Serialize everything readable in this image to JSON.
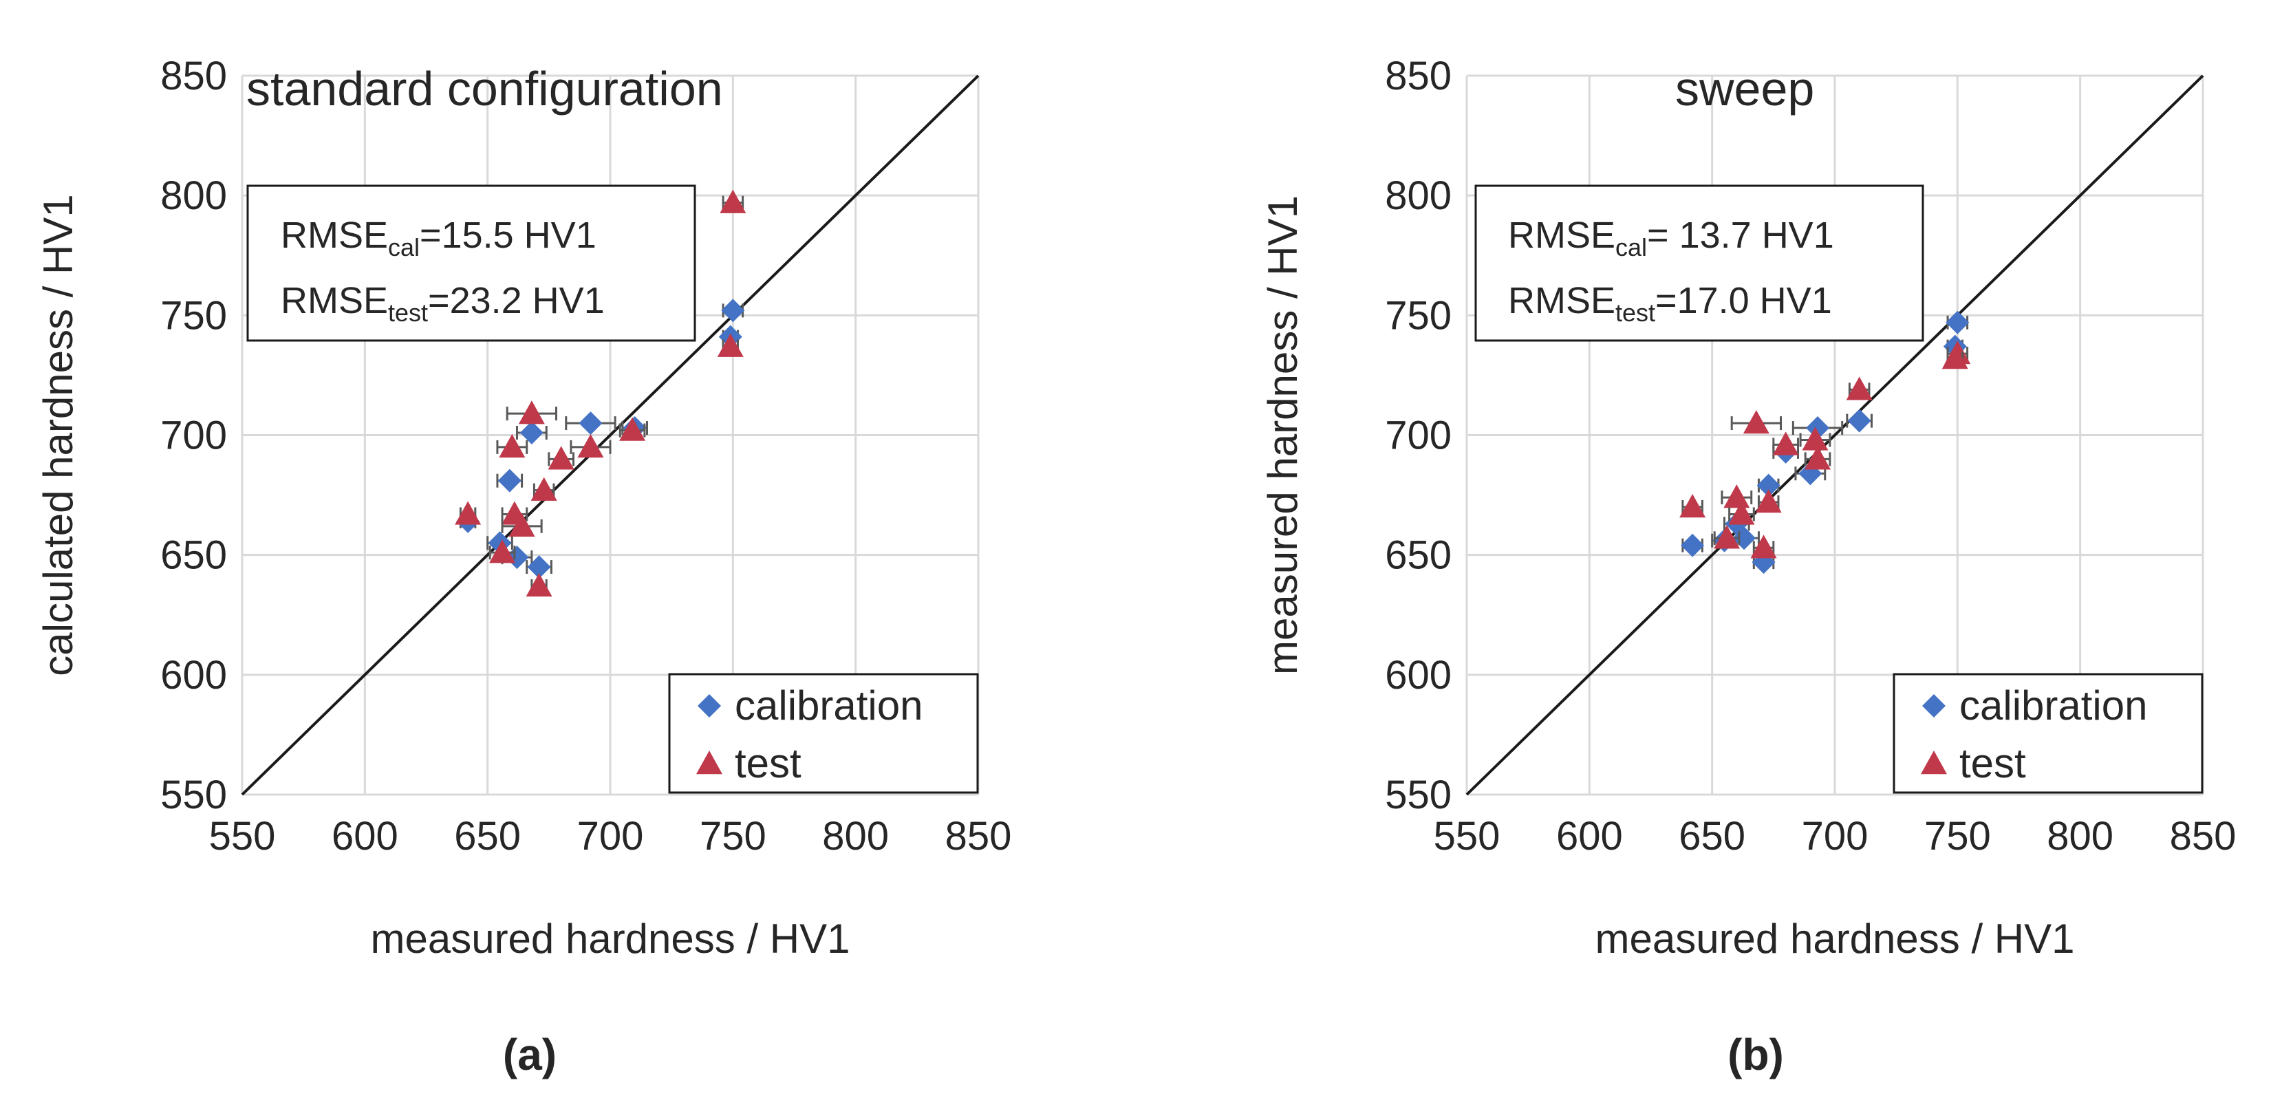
{
  "colors": {
    "calibration": "#4472C4",
    "test": "#C0394B",
    "grid": "#D9D9D9",
    "diagonal": "#1a1a1a",
    "errorbar": "#595959"
  },
  "chart_data": [
    {
      "type": "scatter",
      "panel_label": "(a)",
      "title": "standard configuration",
      "xlabel": "measured hardness / HV1",
      "ylabel": "calculated hardness  / HV1",
      "xlim": [
        550,
        850
      ],
      "ylim": [
        550,
        850
      ],
      "xticks": [
        550,
        600,
        650,
        700,
        750,
        800,
        850
      ],
      "yticks": [
        550,
        600,
        650,
        700,
        750,
        800,
        850
      ],
      "grid": true,
      "reference_line": "y = x",
      "rmse": [
        {
          "base": "RMSE",
          "sub": "cal",
          "value": "=15.5 HV1"
        },
        {
          "base": "RMSE",
          "sub": "test",
          "value": "=23.2 HV1"
        }
      ],
      "legend": {
        "position": "bottom-right",
        "entries": [
          "calibration",
          "test"
        ]
      },
      "series": [
        {
          "name": "calibration",
          "marker": "diamond",
          "points": [
            {
              "x": 642,
              "y": 664,
              "xerr": 3
            },
            {
              "x": 655,
              "y": 655,
              "xerr": 5
            },
            {
              "x": 659,
              "y": 681,
              "xerr": 5
            },
            {
              "x": 662,
              "y": 649,
              "xerr": 6
            },
            {
              "x": 668,
              "y": 701,
              "xerr": 6
            },
            {
              "x": 671,
              "y": 645,
              "xerr": 5
            },
            {
              "x": 692,
              "y": 705,
              "xerr": 10
            },
            {
              "x": 710,
              "y": 703,
              "xerr": 5
            },
            {
              "x": 750,
              "y": 752,
              "xerr": 4
            },
            {
              "x": 749,
              "y": 741,
              "xerr": 3
            }
          ]
        },
        {
          "name": "test",
          "marker": "triangle",
          "points": [
            {
              "x": 642,
              "y": 667,
              "xerr": 3
            },
            {
              "x": 656,
              "y": 651,
              "xerr": 5
            },
            {
              "x": 660,
              "y": 695,
              "xerr": 6
            },
            {
              "x": 661,
              "y": 667,
              "xerr": 5
            },
            {
              "x": 664,
              "y": 662,
              "xerr": 8
            },
            {
              "x": 668,
              "y": 709,
              "xerr": 10
            },
            {
              "x": 671,
              "y": 637,
              "xerr": 3
            },
            {
              "x": 673,
              "y": 677,
              "xerr": 4
            },
            {
              "x": 680,
              "y": 690,
              "xerr": 5
            },
            {
              "x": 692,
              "y": 695,
              "xerr": 8
            },
            {
              "x": 709,
              "y": 702,
              "xerr": 5
            },
            {
              "x": 750,
              "y": 797,
              "xerr": 4
            },
            {
              "x": 749,
              "y": 737,
              "xerr": 3
            }
          ]
        }
      ]
    },
    {
      "type": "scatter",
      "panel_label": "(b)",
      "title": "sweep",
      "xlabel": "measured hardness / HV1",
      "ylabel": "measured hardness / HV1",
      "xlim": [
        550,
        850
      ],
      "ylim": [
        550,
        850
      ],
      "xticks": [
        550,
        600,
        650,
        700,
        750,
        800,
        850
      ],
      "yticks": [
        550,
        600,
        650,
        700,
        750,
        800,
        850
      ],
      "grid": true,
      "reference_line": "y = x",
      "rmse": [
        {
          "base": "RMSE",
          "sub": "cal",
          "value": "= 13.7 HV1"
        },
        {
          "base": "RMSE",
          "sub": "test",
          "value": "=17.0 HV1"
        }
      ],
      "legend": {
        "position": "bottom-right",
        "entries": [
          "calibration",
          "test"
        ]
      },
      "series": [
        {
          "name": "calibration",
          "marker": "diamond",
          "points": [
            {
              "x": 642,
              "y": 654,
              "xerr": 4
            },
            {
              "x": 655,
              "y": 656,
              "xerr": 5
            },
            {
              "x": 660,
              "y": 663,
              "xerr": 5
            },
            {
              "x": 663,
              "y": 657,
              "xerr": 6
            },
            {
              "x": 671,
              "y": 647,
              "xerr": 4
            },
            {
              "x": 673,
              "y": 679,
              "xerr": 4
            },
            {
              "x": 680,
              "y": 693,
              "xerr": 5
            },
            {
              "x": 690,
              "y": 684,
              "xerr": 6
            },
            {
              "x": 693,
              "y": 703,
              "xerr": 10
            },
            {
              "x": 710,
              "y": 706,
              "xerr": 5
            },
            {
              "x": 750,
              "y": 747,
              "xerr": 4
            },
            {
              "x": 749,
              "y": 737,
              "xerr": 3
            }
          ]
        },
        {
          "name": "test",
          "marker": "triangle",
          "points": [
            {
              "x": 642,
              "y": 670,
              "xerr": 4
            },
            {
              "x": 656,
              "y": 657,
              "xerr": 5
            },
            {
              "x": 660,
              "y": 674,
              "xerr": 6
            },
            {
              "x": 662,
              "y": 667,
              "xerr": 5
            },
            {
              "x": 668,
              "y": 705,
              "xerr": 10
            },
            {
              "x": 671,
              "y": 653,
              "xerr": 4
            },
            {
              "x": 673,
              "y": 672,
              "xerr": 4
            },
            {
              "x": 680,
              "y": 696,
              "xerr": 5
            },
            {
              "x": 692,
              "y": 698,
              "xerr": 6
            },
            {
              "x": 693,
              "y": 690,
              "xerr": 5
            },
            {
              "x": 710,
              "y": 719,
              "xerr": 4
            },
            {
              "x": 750,
              "y": 734,
              "xerr": 4
            },
            {
              "x": 749,
              "y": 732,
              "xerr": 3
            }
          ]
        }
      ]
    }
  ]
}
